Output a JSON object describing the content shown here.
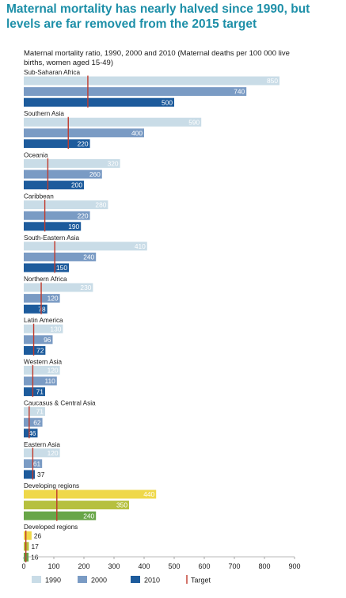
{
  "title": "Maternal mortality has nearly halved since 1990, but levels are far removed from the 2015 target",
  "subtitle": "Maternal mortality ratio, 1990, 2000 and 2010 (Maternal deaths per 100 000 live births, women aged 15-49)",
  "chart_data": {
    "type": "bar",
    "orientation": "horizontal",
    "title": "Maternal mortality has nearly halved since 1990, but levels are far removed from the 2015 target",
    "subtitle": "Maternal mortality ratio, 1990, 2000 and 2010 (Maternal deaths per 100 000 live births, women aged 15-49)",
    "xlim": [
      0,
      900
    ],
    "xticks": [
      0,
      100,
      200,
      300,
      400,
      500,
      600,
      700,
      800,
      900
    ],
    "grid": false,
    "legend_position": "bottom",
    "series_names": [
      "1990",
      "2000",
      "2010"
    ],
    "target_label": "Target",
    "colors": {
      "blue_1990": "#c9dce7",
      "blue_2000": "#7a9bc4",
      "blue_2010": "#1d5b9c",
      "green_1990": "#efd84a",
      "green_2000": "#b6c03f",
      "green_2010": "#68a648",
      "target": "#c0392b",
      "title": "#1d8fa8"
    },
    "regions": [
      {
        "name": "Sub-Saharan Africa",
        "values": [
          850,
          740,
          500
        ],
        "target": 213,
        "palette": "blue"
      },
      {
        "name": "Southern Asia",
        "values": [
          590,
          400,
          220
        ],
        "target": 148,
        "palette": "blue"
      },
      {
        "name": "Oceania",
        "values": [
          320,
          260,
          200
        ],
        "target": 80,
        "palette": "blue"
      },
      {
        "name": "Caribbean",
        "values": [
          280,
          220,
          190
        ],
        "target": 70,
        "palette": "blue"
      },
      {
        "name": "South-Eastern Asia",
        "values": [
          410,
          240,
          150
        ],
        "target": 103,
        "palette": "blue"
      },
      {
        "name": "Northern Africa",
        "values": [
          230,
          120,
          78
        ],
        "target": 58,
        "palette": "blue"
      },
      {
        "name": "Latin America",
        "values": [
          130,
          96,
          72
        ],
        "target": 33,
        "palette": "blue"
      },
      {
        "name": "Western Asia",
        "values": [
          120,
          110,
          71
        ],
        "target": 30,
        "palette": "blue"
      },
      {
        "name": "Caucasus & Central Asia",
        "values": [
          71,
          62,
          46
        ],
        "target": 18,
        "palette": "blue"
      },
      {
        "name": "Eastern Asia",
        "values": [
          120,
          61,
          37
        ],
        "target": 30,
        "palette": "blue"
      },
      {
        "name": "Developing regions",
        "values": [
          440,
          350,
          240
        ],
        "target": 110,
        "palette": "green"
      },
      {
        "name": "Developed regions",
        "values": [
          26,
          17,
          16
        ],
        "target": 7,
        "palette": "green"
      }
    ]
  }
}
